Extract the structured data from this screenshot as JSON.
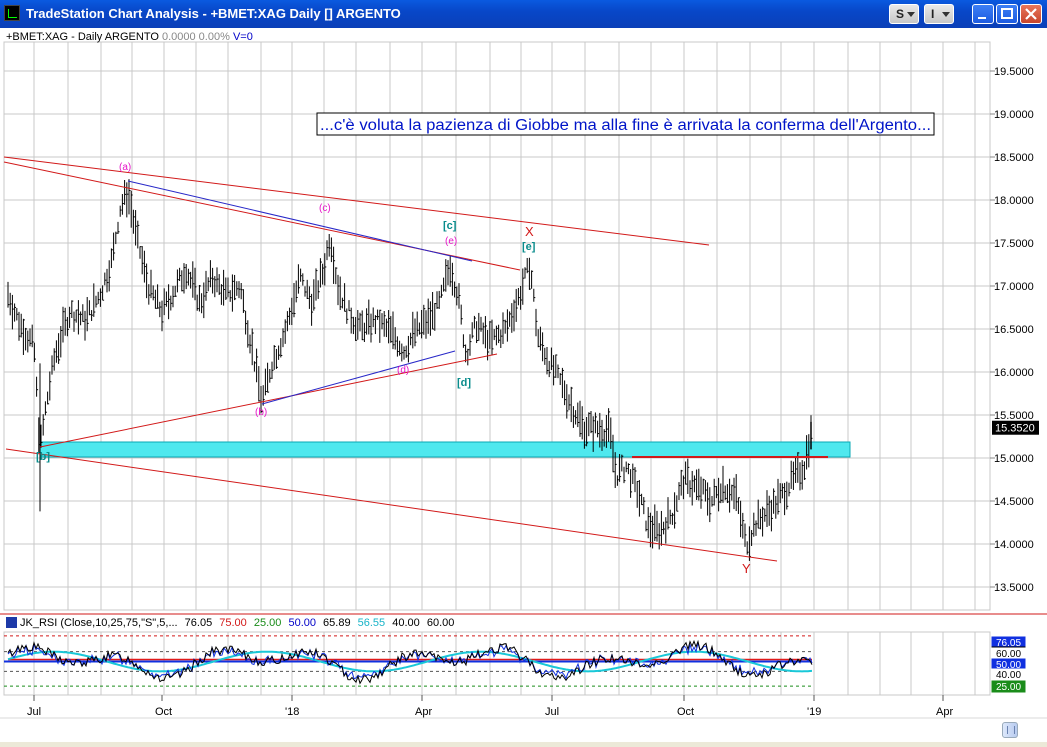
{
  "window": {
    "title": "TradeStation Chart Analysis - +BMET:XAG Daily [] ARGENTO",
    "buttons": {
      "s": "S",
      "i": "I"
    }
  },
  "header": {
    "symbol": "+BMET:XAG - Daily  ARGENTO",
    "change": "0.0000  0.00%",
    "volume": "V=0"
  },
  "annotation": "...c'è voluta la pazienza di Giobbe ma alla fine è arrivata la conferma dell'Argento...",
  "price_axis": [
    "19.5000",
    "19.0000",
    "18.5000",
    "18.0000",
    "17.5000",
    "17.0000",
    "16.5000",
    "16.0000",
    "15.5000",
    "15.0000",
    "14.5000",
    "14.0000",
    "13.5000"
  ],
  "last_price": "15.3520",
  "wave_labels": {
    "a": "(a)",
    "b": "(b)",
    "c": "(c)",
    "d": "(d)",
    "e": "(e)",
    "bracket_b": "[b]",
    "bracket_c": "[c]",
    "bracket_d": "[d]",
    "bracket_e": "[e]",
    "x": "X",
    "y": "Y"
  },
  "rsi": {
    "name": "JK_RSI (Close,10,25,75,\"S\",5,...",
    "v1": "76.05",
    "v2": "75.00",
    "v3": "25.00",
    "v4": "50.00",
    "v5": "65.89",
    "v6": "56.55",
    "v7": "40.00",
    "v8": "60.00",
    "axis_labels": [
      "76.05",
      "65.89",
      "60.00",
      "50.00",
      "40.00",
      "25.00"
    ]
  },
  "time_axis": [
    "Jul",
    "Oct",
    "'18",
    "Apr",
    "Jul",
    "Oct",
    "'19",
    "Apr"
  ],
  "colors": {
    "cyan_zone": "#4fe8ee",
    "trendline": "#d21919",
    "blue_line": "#2828c8",
    "magenta": "#e614c8",
    "teal": "#0a8c8c"
  }
}
